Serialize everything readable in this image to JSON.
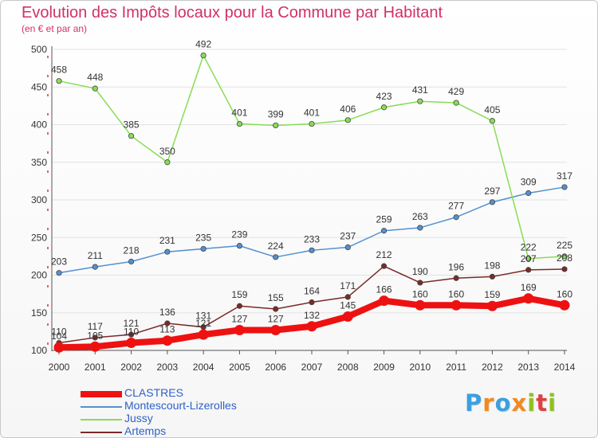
{
  "header": {
    "title": "Evolution des Impôts locaux pour la Commune par Habitant",
    "subtitle": "(en € et par an)"
  },
  "logo": {
    "text": "Proxiti",
    "colors": [
      "#3aa0e0",
      "#f08a20",
      "#3aa0e0",
      "#f08a20",
      "#90c020",
      "#e04040",
      "#90c020"
    ]
  },
  "chart_data": {
    "type": "line",
    "x": [
      2000,
      2001,
      2002,
      2003,
      2004,
      2005,
      2006,
      2007,
      2008,
      2009,
      2010,
      2011,
      2012,
      2013,
      2014
    ],
    "ylim": [
      100,
      500
    ],
    "yticks": [
      100,
      150,
      200,
      250,
      300,
      350,
      400,
      450,
      500
    ],
    "grid": "horizontal",
    "legend_position": "bottom-left",
    "series": [
      {
        "name": "CLASTRES",
        "color": "#ee1111",
        "width": 8,
        "values": [
          104,
          105,
          110,
          113,
          121,
          127,
          127,
          132,
          145,
          166,
          160,
          160,
          159,
          169,
          160
        ]
      },
      {
        "name": "Montescourt-Lizerolles",
        "color": "#5590d0",
        "width": 1.5,
        "values": [
          203,
          211,
          218,
          231,
          235,
          239,
          224,
          233,
          237,
          259,
          263,
          277,
          297,
          309,
          317
        ]
      },
      {
        "name": "Jussy",
        "color": "#88dd55",
        "width": 1.5,
        "values": [
          458,
          448,
          385,
          350,
          492,
          401,
          399,
          401,
          406,
          423,
          431,
          429,
          405,
          222,
          225
        ]
      },
      {
        "name": "Artemps",
        "color": "#7a2a2a",
        "width": 1.5,
        "values": [
          110,
          117,
          121,
          136,
          131,
          159,
          155,
          164,
          171,
          212,
          190,
          196,
          198,
          207,
          208
        ]
      }
    ]
  }
}
